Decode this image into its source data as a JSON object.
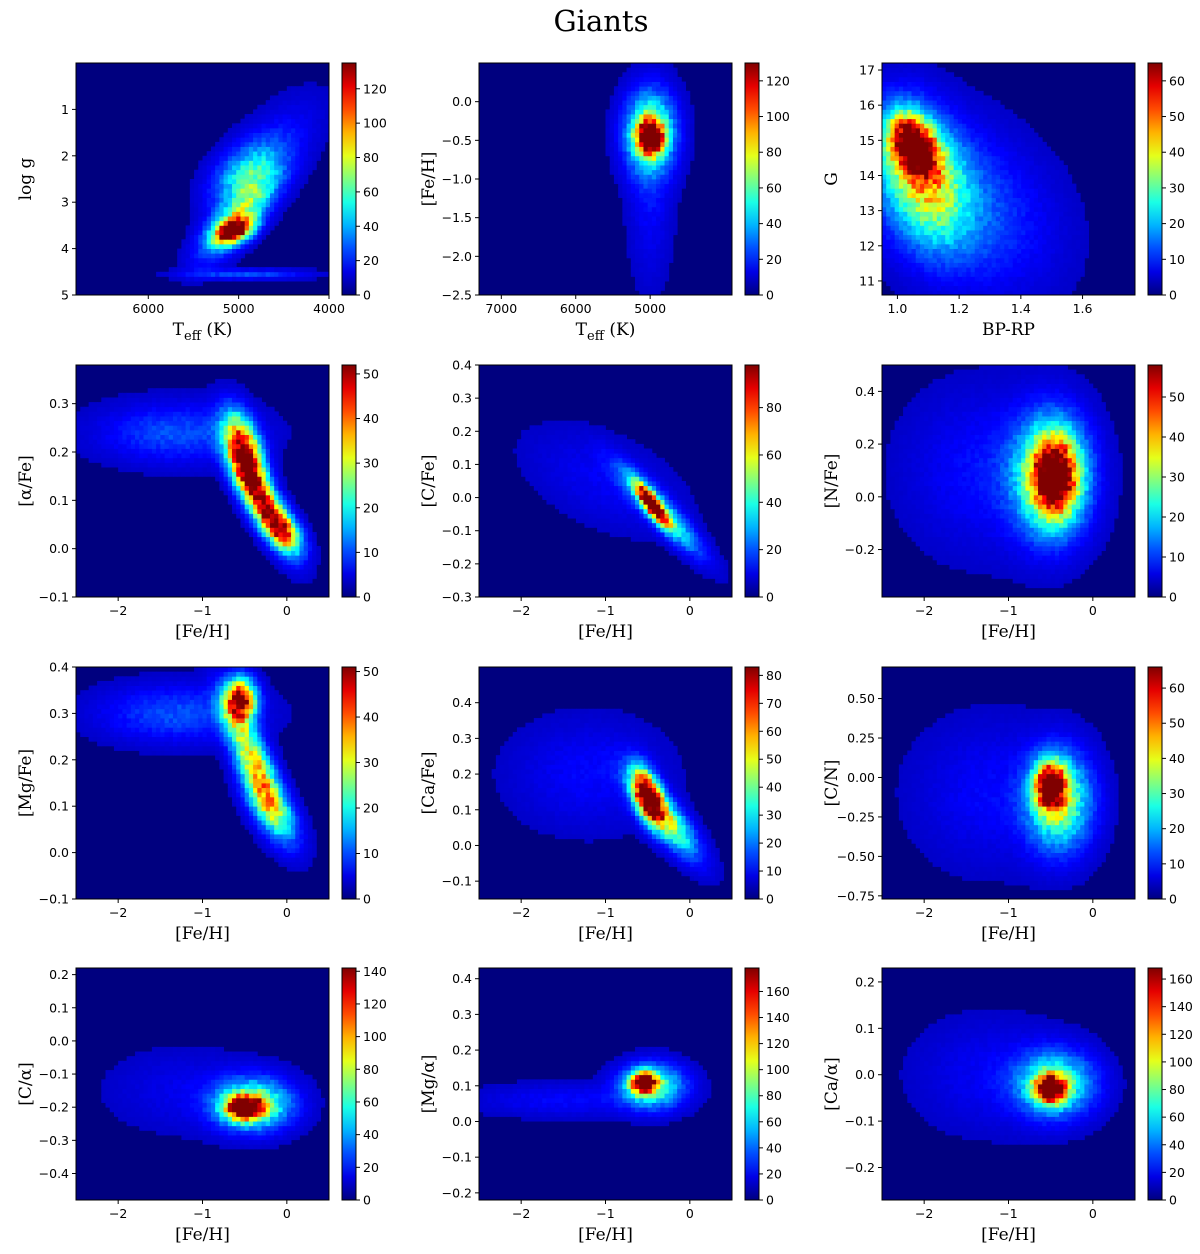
{
  "figure": {
    "title": "Giants"
  },
  "colors": {
    "background": "#00007f",
    "frame": "#000000"
  },
  "chart_data": [
    {
      "type": "heatmap",
      "xlabel": "T_eff (K)",
      "ylabel": "log g",
      "xlim": [
        6800,
        4000
      ],
      "ylim": [
        5,
        0
      ],
      "xticks": [
        6000,
        5000,
        4000
      ],
      "xtick_labels": [
        "6000",
        "5000",
        "4000"
      ],
      "yticks": [
        1,
        2,
        3,
        4,
        5
      ],
      "ytick_labels": [
        "1",
        "2",
        "3",
        "4",
        "5"
      ],
      "colorbar": {
        "max": 135,
        "ticks": [
          0,
          20,
          40,
          60,
          80,
          100,
          120
        ],
        "tick_labels": [
          "0",
          "20",
          "40",
          "60",
          "80",
          "100",
          "120"
        ]
      },
      "density_features": [
        {
          "x": 5050,
          "y": 3.6,
          "sx": 140,
          "sy": 0.18,
          "peak": 1.0,
          "rho": 0.4
        },
        {
          "x": 5000,
          "y": 3.3,
          "sx": 260,
          "sy": 0.55,
          "peak": 0.45,
          "rho": 0.75
        },
        {
          "x": 4900,
          "y": 2.4,
          "sx": 250,
          "sy": 0.45,
          "peak": 0.32,
          "rho": 0.4
        },
        {
          "x": 4600,
          "y": 1.8,
          "sx": 350,
          "sy": 0.7,
          "peak": 0.08,
          "rho": 0.6
        },
        {
          "x": 4900,
          "y": 4.55,
          "sx": 450,
          "sy": 0.07,
          "peak": 0.15,
          "rho": 0
        }
      ]
    },
    {
      "type": "heatmap",
      "xlabel": "T_eff (K)",
      "ylabel": "[Fe/H]",
      "xlim": [
        7300,
        3900
      ],
      "ylim": [
        -2.5,
        0.5
      ],
      "xticks": [
        7000,
        6000,
        5000
      ],
      "xtick_labels": [
        "7000",
        "6000",
        "5000"
      ],
      "yticks": [
        -2.5,
        -2.0,
        -1.5,
        -1.0,
        -0.5,
        0.0
      ],
      "ytick_labels": [
        "−2.5",
        "−2.0",
        "−1.5",
        "−1.0",
        "−0.5",
        "0.0"
      ],
      "colorbar": {
        "max": 130,
        "ticks": [
          0,
          20,
          40,
          60,
          80,
          100,
          120
        ],
        "tick_labels": [
          "0",
          "20",
          "40",
          "60",
          "80",
          "100",
          "120"
        ]
      },
      "density_features": [
        {
          "x": 5000,
          "y": -0.45,
          "sx": 120,
          "sy": 0.15,
          "peak": 1.0,
          "rho": 0
        },
        {
          "x": 5000,
          "y": -0.4,
          "sx": 220,
          "sy": 0.35,
          "peak": 0.5,
          "rho": 0
        },
        {
          "x": 5000,
          "y": -1.2,
          "sx": 190,
          "sy": 0.75,
          "peak": 0.07,
          "rho": 0
        }
      ]
    },
    {
      "type": "heatmap",
      "xlabel": "BP-RP",
      "ylabel": "G",
      "xlim": [
        0.95,
        1.77
      ],
      "ylim": [
        10.6,
        17.2
      ],
      "xticks": [
        1.0,
        1.2,
        1.4,
        1.6
      ],
      "xtick_labels": [
        "1.0",
        "1.2",
        "1.4",
        "1.6"
      ],
      "yticks": [
        11,
        12,
        13,
        14,
        15,
        16,
        17
      ],
      "ytick_labels": [
        "11",
        "12",
        "13",
        "14",
        "15",
        "16",
        "17"
      ],
      "colorbar": {
        "max": 65,
        "ticks": [
          0,
          10,
          20,
          30,
          40,
          50,
          60
        ],
        "tick_labels": [
          "0",
          "10",
          "20",
          "30",
          "40",
          "50",
          "60"
        ]
      },
      "density_features": [
        {
          "x": 1.05,
          "y": 14.9,
          "sx": 0.05,
          "sy": 0.55,
          "peak": 1.0,
          "rho": -0.3
        },
        {
          "x": 1.08,
          "y": 14.0,
          "sx": 0.09,
          "sy": 1.2,
          "peak": 0.55,
          "rho": -0.3
        },
        {
          "x": 1.2,
          "y": 13.2,
          "sx": 0.18,
          "sy": 1.5,
          "peak": 0.18,
          "rho": -0.3
        }
      ]
    },
    {
      "type": "heatmap",
      "xlabel": "[Fe/H]",
      "ylabel": "[α/Fe]",
      "xlim": [
        -2.5,
        0.5
      ],
      "ylim": [
        -0.1,
        0.38
      ],
      "xticks": [
        -2,
        -1,
        0
      ],
      "xtick_labels": [
        "−2",
        "−1",
        "0"
      ],
      "yticks": [
        -0.1,
        0.0,
        0.1,
        0.2,
        0.3
      ],
      "ytick_labels": [
        "−0.1",
        "0.0",
        "0.1",
        "0.2",
        "0.3"
      ],
      "colorbar": {
        "max": 52,
        "ticks": [
          0,
          10,
          20,
          30,
          40,
          50
        ],
        "tick_labels": [
          "0",
          "10",
          "20",
          "30",
          "40",
          "50"
        ]
      },
      "density_features": [
        {
          "x": -0.5,
          "y": 0.2,
          "sx": 0.15,
          "sy": 0.05,
          "peak": 0.95,
          "rho": -0.5
        },
        {
          "x": -0.3,
          "y": 0.1,
          "sx": 0.22,
          "sy": 0.06,
          "peak": 0.85,
          "rho": -0.8
        },
        {
          "x": -0.05,
          "y": 0.04,
          "sx": 0.15,
          "sy": 0.03,
          "peak": 0.6,
          "rho": -0.5
        },
        {
          "x": -1.3,
          "y": 0.24,
          "sx": 0.6,
          "sy": 0.04,
          "peak": 0.15,
          "rho": 0
        }
      ]
    },
    {
      "type": "heatmap",
      "xlabel": "[Fe/H]",
      "ylabel": "[C/Fe]",
      "xlim": [
        -2.5,
        0.5
      ],
      "ylim": [
        -0.3,
        0.4
      ],
      "xticks": [
        -2,
        -1,
        0
      ],
      "xtick_labels": [
        "−2",
        "−1",
        "0"
      ],
      "yticks": [
        -0.3,
        -0.2,
        -0.1,
        0.0,
        0.1,
        0.2,
        0.3,
        0.4
      ],
      "ytick_labels": [
        "−0.3",
        "−0.2",
        "−0.1",
        "0.0",
        "0.1",
        "0.2",
        "0.3",
        "0.4"
      ],
      "colorbar": {
        "max": 98,
        "ticks": [
          0,
          20,
          40,
          60,
          80
        ],
        "tick_labels": [
          "0",
          "20",
          "40",
          "60",
          "80"
        ]
      },
      "density_features": [
        {
          "x": -0.45,
          "y": -0.02,
          "sx": 0.12,
          "sy": 0.04,
          "peak": 1.0,
          "rho": -0.85
        },
        {
          "x": -0.35,
          "y": -0.04,
          "sx": 0.3,
          "sy": 0.08,
          "peak": 0.45,
          "rho": -0.9
        },
        {
          "x": -1.0,
          "y": 0.05,
          "sx": 0.6,
          "sy": 0.1,
          "peak": 0.06,
          "rho": -0.5
        }
      ]
    },
    {
      "type": "heatmap",
      "xlabel": "[Fe/H]",
      "ylabel": "[N/Fe]",
      "xlim": [
        -2.5,
        0.5
      ],
      "ylim": [
        -0.38,
        0.5
      ],
      "xticks": [
        -2,
        -1,
        0
      ],
      "xtick_labels": [
        "−2",
        "−1",
        "0"
      ],
      "yticks": [
        -0.2,
        0.0,
        0.2,
        0.4
      ],
      "ytick_labels": [
        "−0.2",
        "0.0",
        "0.2",
        "0.4"
      ],
      "colorbar": {
        "max": 58,
        "ticks": [
          0,
          10,
          20,
          30,
          40,
          50
        ],
        "tick_labels": [
          "0",
          "10",
          "20",
          "30",
          "40",
          "50"
        ]
      },
      "density_features": [
        {
          "x": -0.45,
          "y": 0.08,
          "sx": 0.18,
          "sy": 0.1,
          "peak": 0.9,
          "rho": 0
        },
        {
          "x": -0.5,
          "y": 0.08,
          "sx": 0.3,
          "sy": 0.15,
          "peak": 0.5,
          "rho": 0
        },
        {
          "x": -1.3,
          "y": 0.1,
          "sx": 0.6,
          "sy": 0.2,
          "peak": 0.08,
          "rho": 0
        }
      ]
    },
    {
      "type": "heatmap",
      "xlabel": "[Fe/H]",
      "ylabel": "[Mg/Fe]",
      "xlim": [
        -2.5,
        0.5
      ],
      "ylim": [
        -0.1,
        0.4
      ],
      "xticks": [
        -2,
        -1,
        0
      ],
      "xtick_labels": [
        "−2",
        "−1",
        "0"
      ],
      "yticks": [
        -0.1,
        0.0,
        0.1,
        0.2,
        0.3,
        0.4
      ],
      "ytick_labels": [
        "−0.1",
        "0.0",
        "0.1",
        "0.2",
        "0.3",
        "0.4"
      ],
      "colorbar": {
        "max": 51,
        "ticks": [
          0,
          10,
          20,
          30,
          40,
          50
        ],
        "tick_labels": [
          "0",
          "10",
          "20",
          "30",
          "40",
          "50"
        ]
      },
      "density_features": [
        {
          "x": -0.55,
          "y": 0.33,
          "sx": 0.12,
          "sy": 0.03,
          "peak": 1.0,
          "rho": 0
        },
        {
          "x": -0.4,
          "y": 0.2,
          "sx": 0.22,
          "sy": 0.08,
          "peak": 0.6,
          "rho": -0.8
        },
        {
          "x": -0.2,
          "y": 0.1,
          "sx": 0.2,
          "sy": 0.05,
          "peak": 0.4,
          "rho": -0.6
        },
        {
          "x": -1.3,
          "y": 0.3,
          "sx": 0.6,
          "sy": 0.04,
          "peak": 0.15,
          "rho": 0
        }
      ]
    },
    {
      "type": "heatmap",
      "xlabel": "[Fe/H]",
      "ylabel": "[Ca/Fe]",
      "xlim": [
        -2.5,
        0.5
      ],
      "ylim": [
        -0.15,
        0.5
      ],
      "xticks": [
        -2,
        -1,
        0
      ],
      "xtick_labels": [
        "−2",
        "−1",
        "0"
      ],
      "yticks": [
        -0.1,
        0.0,
        0.1,
        0.2,
        0.3,
        0.4
      ],
      "ytick_labels": [
        "−0.1",
        "0.0",
        "0.1",
        "0.2",
        "0.3",
        "0.4"
      ],
      "colorbar": {
        "max": 83,
        "ticks": [
          0,
          10,
          20,
          30,
          40,
          50,
          60,
          70,
          80
        ],
        "tick_labels": [
          "0",
          "10",
          "20",
          "30",
          "40",
          "50",
          "60",
          "70",
          "80"
        ]
      },
      "density_features": [
        {
          "x": -0.5,
          "y": 0.14,
          "sx": 0.12,
          "sy": 0.05,
          "peak": 1.0,
          "rho": -0.5
        },
        {
          "x": -0.3,
          "y": 0.08,
          "sx": 0.25,
          "sy": 0.07,
          "peak": 0.55,
          "rho": -0.8
        },
        {
          "x": -1.2,
          "y": 0.2,
          "sx": 0.6,
          "sy": 0.1,
          "peak": 0.07,
          "rho": 0
        }
      ]
    },
    {
      "type": "heatmap",
      "xlabel": "[Fe/H]",
      "ylabel": "[C/N]",
      "xlim": [
        -2.5,
        0.5
      ],
      "ylim": [
        -0.77,
        0.7
      ],
      "xticks": [
        -2,
        -1,
        0
      ],
      "xtick_labels": [
        "−2",
        "−1",
        "0"
      ],
      "yticks": [
        -0.75,
        -0.5,
        -0.25,
        0.0,
        0.25,
        0.5
      ],
      "ytick_labels": [
        "−0.75",
        "−0.50",
        "−0.25",
        "0.00",
        "0.25",
        "0.50"
      ],
      "colorbar": {
        "max": 66,
        "ticks": [
          0,
          10,
          20,
          30,
          40,
          50,
          60
        ],
        "tick_labels": [
          "0",
          "10",
          "20",
          "30",
          "40",
          "50",
          "60"
        ]
      },
      "density_features": [
        {
          "x": -0.5,
          "y": -0.05,
          "sx": 0.12,
          "sy": 0.1,
          "peak": 1.0,
          "rho": 0
        },
        {
          "x": -0.4,
          "y": -0.15,
          "sx": 0.25,
          "sy": 0.2,
          "peak": 0.5,
          "rho": 0
        },
        {
          "x": -1.2,
          "y": -0.1,
          "sx": 0.6,
          "sy": 0.3,
          "peak": 0.07,
          "rho": 0
        }
      ]
    },
    {
      "type": "heatmap",
      "xlabel": "[Fe/H]",
      "ylabel": "[C/α]",
      "xlim": [
        -2.5,
        0.5
      ],
      "ylim": [
        -0.48,
        0.22
      ],
      "xticks": [
        -2,
        -1,
        0
      ],
      "xtick_labels": [
        "−2",
        "−1",
        "0"
      ],
      "yticks": [
        -0.4,
        -0.3,
        -0.2,
        -0.1,
        0.0,
        0.1,
        0.2
      ],
      "ytick_labels": [
        "−0.4",
        "−0.3",
        "−0.2",
        "−0.1",
        "0.0",
        "0.1",
        "0.2"
      ],
      "colorbar": {
        "max": 142,
        "ticks": [
          0,
          20,
          40,
          60,
          80,
          100,
          120,
          140
        ],
        "tick_labels": [
          "0",
          "20",
          "40",
          "60",
          "80",
          "100",
          "120",
          "140"
        ]
      },
      "density_features": [
        {
          "x": -0.5,
          "y": -0.2,
          "sx": 0.15,
          "sy": 0.025,
          "peak": 1.0,
          "rho": 0
        },
        {
          "x": -0.4,
          "y": -0.19,
          "sx": 0.3,
          "sy": 0.05,
          "peak": 0.5,
          "rho": 0
        },
        {
          "x": -1.2,
          "y": -0.15,
          "sx": 0.6,
          "sy": 0.08,
          "peak": 0.05,
          "rho": 0
        }
      ]
    },
    {
      "type": "heatmap",
      "xlabel": "[Fe/H]",
      "ylabel": "[Mg/α]",
      "xlim": [
        -2.5,
        0.5
      ],
      "ylim": [
        -0.22,
        0.43
      ],
      "xticks": [
        -2,
        -1,
        0
      ],
      "xtick_labels": [
        "−2",
        "−1",
        "0"
      ],
      "yticks": [
        -0.2,
        -0.1,
        0.0,
        0.1,
        0.2,
        0.3,
        0.4
      ],
      "ytick_labels": [
        "−0.2",
        "−0.1",
        "0.0",
        "0.1",
        "0.2",
        "0.3",
        "0.4"
      ],
      "colorbar": {
        "max": 178,
        "ticks": [
          0,
          20,
          40,
          60,
          80,
          100,
          120,
          140,
          160
        ],
        "tick_labels": [
          "0",
          "20",
          "40",
          "60",
          "80",
          "100",
          "120",
          "140",
          "160"
        ]
      },
      "density_features": [
        {
          "x": -0.55,
          "y": 0.11,
          "sx": 0.1,
          "sy": 0.02,
          "peak": 1.0,
          "rho": 0
        },
        {
          "x": -0.45,
          "y": 0.1,
          "sx": 0.25,
          "sy": 0.04,
          "peak": 0.45,
          "rho": 0
        },
        {
          "x": -1.5,
          "y": 0.06,
          "sx": 0.7,
          "sy": 0.03,
          "peak": 0.07,
          "rho": 0
        }
      ]
    },
    {
      "type": "heatmap",
      "xlabel": "[Fe/H]",
      "ylabel": "[Ca/α]",
      "xlim": [
        -2.5,
        0.5
      ],
      "ylim": [
        -0.27,
        0.23
      ],
      "xticks": [
        -2,
        -1,
        0
      ],
      "xtick_labels": [
        "−2",
        "−1",
        "0"
      ],
      "yticks": [
        -0.2,
        -0.1,
        0.0,
        0.1,
        0.2
      ],
      "ytick_labels": [
        "−0.2",
        "−0.1",
        "0.0",
        "0.1",
        "0.2"
      ],
      "colorbar": {
        "max": 168,
        "ticks": [
          0,
          20,
          40,
          60,
          80,
          100,
          120,
          140,
          160
        ],
        "tick_labels": [
          "0",
          "20",
          "40",
          "60",
          "80",
          "100",
          "120",
          "140",
          "160"
        ]
      },
      "density_features": [
        {
          "x": -0.5,
          "y": -0.03,
          "sx": 0.12,
          "sy": 0.02,
          "peak": 1.0,
          "rho": 0
        },
        {
          "x": -0.45,
          "y": -0.02,
          "sx": 0.3,
          "sy": 0.045,
          "peak": 0.45,
          "rho": 0
        },
        {
          "x": -1.2,
          "y": 0.0,
          "sx": 0.6,
          "sy": 0.08,
          "peak": 0.06,
          "rho": 0
        }
      ]
    }
  ]
}
